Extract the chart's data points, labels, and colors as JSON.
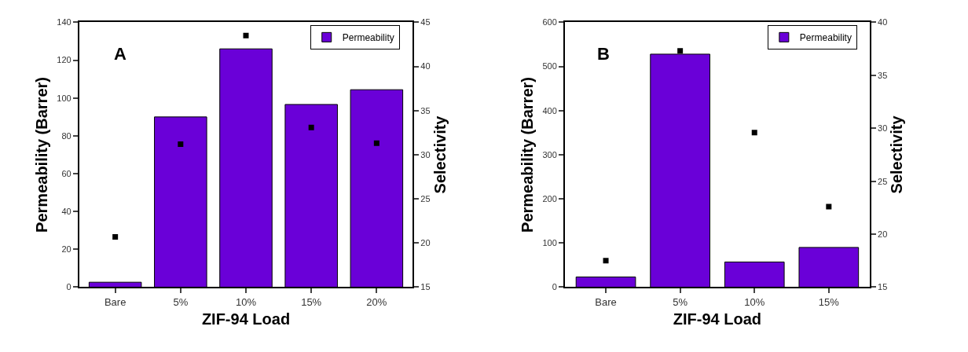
{
  "chart_data": [
    {
      "type": "bar",
      "categories": [
        "Bare",
        "5%",
        "10%",
        "15%",
        "20%"
      ],
      "xlabel": "ZIF-94 Load",
      "ylabel": "Permeability (Barrer)",
      "y2label": "Selectivity",
      "annotations": [
        "A"
      ],
      "series": [
        {
          "name": "Permeability",
          "color": "#6a00d8",
          "values": [
            2.6,
            90,
            126,
            96.6,
            104.4
          ]
        },
        {
          "type": "scatter",
          "axis": "y2",
          "color": "#000000",
          "marker": "square",
          "values": [
            20.7,
            31.2,
            43.5,
            33.1,
            31.3
          ]
        }
      ],
      "ylim": [
        0,
        140
      ],
      "yticks": [
        0,
        20,
        40,
        60,
        80,
        100,
        120,
        140
      ],
      "y2lim": [
        15,
        45
      ],
      "y2ticks": [
        15,
        20,
        25,
        30,
        35,
        40,
        45
      ],
      "legend": "top right"
    },
    {
      "type": "bar",
      "categories": [
        "Bare",
        "5%",
        "10%",
        "15%"
      ],
      "xlabel": "ZIF-94 Load",
      "ylabel": "Permeability (Barrer)",
      "y2label": "Selectivity",
      "annotations": [
        "B"
      ],
      "series": [
        {
          "name": "Permeability",
          "color": "#6a00d8",
          "values": [
            23,
            528,
            57,
            90
          ]
        },
        {
          "type": "scatter",
          "axis": "y2",
          "color": "#000000",
          "marker": "square",
          "values": [
            17.5,
            37.3,
            29.6,
            22.6
          ]
        }
      ],
      "ylim": [
        0,
        600
      ],
      "yticks": [
        0,
        100,
        200,
        300,
        400,
        500,
        600
      ],
      "y2lim": [
        15,
        40
      ],
      "y2ticks": [
        15,
        20,
        25,
        30,
        35,
        40
      ],
      "legend": "top right"
    }
  ]
}
